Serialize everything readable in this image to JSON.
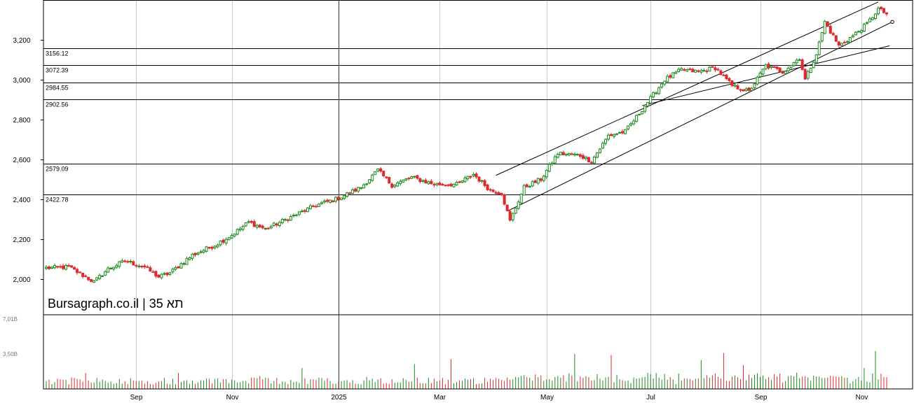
{
  "chart_data": {
    "type": "candlestick",
    "watermark": "Bursagraph.co.il | תא 35",
    "price_axis": {
      "ylim": [
        1820,
        3400
      ],
      "ticks": [
        {
          "value": 2000,
          "label": "2,000"
        },
        {
          "value": 2200,
          "label": "2,200"
        },
        {
          "value": 2400,
          "label": "2,400"
        },
        {
          "value": 2600,
          "label": "2,600"
        },
        {
          "value": 2800,
          "label": "2,800"
        },
        {
          "value": 3000,
          "label": "3,000"
        },
        {
          "value": 3200,
          "label": "3,200"
        }
      ]
    },
    "volume_axis": {
      "ticks": [
        {
          "value": 7.01,
          "label": "7,01B"
        },
        {
          "value": 3.5,
          "label": "3,50B"
        }
      ]
    },
    "horizontal_levels": [
      {
        "value": 3156.12,
        "label": "3156.12"
      },
      {
        "value": 3072.39,
        "label": "3072.39"
      },
      {
        "value": 2984.55,
        "label": "2984.55"
      },
      {
        "value": 2902.56,
        "label": "2902.56"
      },
      {
        "value": 2579.09,
        "label": "2579.09"
      },
      {
        "value": 2422.78,
        "label": "2422.78"
      }
    ],
    "x_axis": {
      "n_bars": 300,
      "labels": [
        {
          "bar": 32,
          "label": "Sep"
        },
        {
          "bar": 66,
          "label": "Nov"
        },
        {
          "bar": 104,
          "label": "2025"
        },
        {
          "bar": 140,
          "label": "Mar"
        },
        {
          "bar": 178,
          "label": "May"
        },
        {
          "bar": 215,
          "label": "Jul"
        },
        {
          "bar": 254,
          "label": "Sep"
        },
        {
          "bar": 290,
          "label": "Nov"
        }
      ],
      "year_divider_bar": 104
    },
    "price_anchors": [
      {
        "bar": 0,
        "value": 2055
      },
      {
        "bar": 8,
        "value": 2060
      },
      {
        "bar": 14,
        "value": 2010
      },
      {
        "bar": 17,
        "value": 1985
      },
      {
        "bar": 22,
        "value": 2050
      },
      {
        "bar": 28,
        "value": 2090
      },
      {
        "bar": 35,
        "value": 2060
      },
      {
        "bar": 40,
        "value": 2010
      },
      {
        "bar": 44,
        "value": 2030
      },
      {
        "bar": 52,
        "value": 2120
      },
      {
        "bar": 60,
        "value": 2170
      },
      {
        "bar": 66,
        "value": 2220
      },
      {
        "bar": 72,
        "value": 2285
      },
      {
        "bar": 78,
        "value": 2250
      },
      {
        "bar": 84,
        "value": 2290
      },
      {
        "bar": 90,
        "value": 2330
      },
      {
        "bar": 96,
        "value": 2370
      },
      {
        "bar": 104,
        "value": 2405
      },
      {
        "bar": 112,
        "value": 2460
      },
      {
        "bar": 118,
        "value": 2545
      },
      {
        "bar": 123,
        "value": 2470
      },
      {
        "bar": 130,
        "value": 2510
      },
      {
        "bar": 138,
        "value": 2475
      },
      {
        "bar": 146,
        "value": 2475
      },
      {
        "bar": 152,
        "value": 2525
      },
      {
        "bar": 158,
        "value": 2445
      },
      {
        "bar": 162,
        "value": 2430
      },
      {
        "bar": 165,
        "value": 2290
      },
      {
        "bar": 170,
        "value": 2460
      },
      {
        "bar": 176,
        "value": 2500
      },
      {
        "bar": 182,
        "value": 2630
      },
      {
        "bar": 190,
        "value": 2620
      },
      {
        "bar": 194,
        "value": 2590
      },
      {
        "bar": 200,
        "value": 2720
      },
      {
        "bar": 206,
        "value": 2740
      },
      {
        "bar": 212,
        "value": 2850
      },
      {
        "bar": 220,
        "value": 3000
      },
      {
        "bar": 226,
        "value": 3050
      },
      {
        "bar": 232,
        "value": 3040
      },
      {
        "bar": 238,
        "value": 3060
      },
      {
        "bar": 244,
        "value": 2970
      },
      {
        "bar": 250,
        "value": 2940
      },
      {
        "bar": 256,
        "value": 3070
      },
      {
        "bar": 262,
        "value": 3040
      },
      {
        "bar": 268,
        "value": 3110
      },
      {
        "bar": 270,
        "value": 3000
      },
      {
        "bar": 274,
        "value": 3130
      },
      {
        "bar": 277,
        "value": 3290
      },
      {
        "bar": 282,
        "value": 3170
      },
      {
        "bar": 287,
        "value": 3220
      },
      {
        "bar": 292,
        "value": 3280
      },
      {
        "bar": 296,
        "value": 3355
      },
      {
        "bar": 299,
        "value": 3330
      }
    ],
    "volume_spikes": [
      {
        "bar": 14,
        "value": 1.6
      },
      {
        "bar": 47,
        "value": 1.6
      },
      {
        "bar": 76,
        "value": 1.3
      },
      {
        "bar": 91,
        "value": 2.1
      },
      {
        "bar": 114,
        "value": 1.2
      },
      {
        "bar": 131,
        "value": 2.5
      },
      {
        "bar": 144,
        "value": 3.0
      },
      {
        "bar": 167,
        "value": 1.2
      },
      {
        "bar": 188,
        "value": 3.5
      },
      {
        "bar": 201,
        "value": 3.4
      },
      {
        "bar": 214,
        "value": 1.6
      },
      {
        "bar": 233,
        "value": 2.9
      },
      {
        "bar": 241,
        "value": 3.6
      },
      {
        "bar": 248,
        "value": 2.4
      },
      {
        "bar": 264,
        "value": 1.3
      },
      {
        "bar": 277,
        "value": 1.1
      },
      {
        "bar": 282,
        "value": 1.2
      },
      {
        "bar": 291,
        "value": 2.1
      },
      {
        "bar": 295,
        "value": 3.8
      }
    ],
    "trend_channel": {
      "upper": [
        {
          "bar": 160,
          "value": 2520
        },
        {
          "bar": 296,
          "value": 3390
        }
      ],
      "lower": [
        {
          "bar": 164,
          "value": 2340
        },
        {
          "bar": 301,
          "value": 3290
        }
      ],
      "middle": [
        {
          "bar": 212,
          "value": 2870
        },
        {
          "bar": 300,
          "value": 3170
        }
      ]
    },
    "colors": {
      "up": "#1a8a1a",
      "down": "#e0282e",
      "grid": "#c8c8c8",
      "levels": "#000000"
    }
  }
}
